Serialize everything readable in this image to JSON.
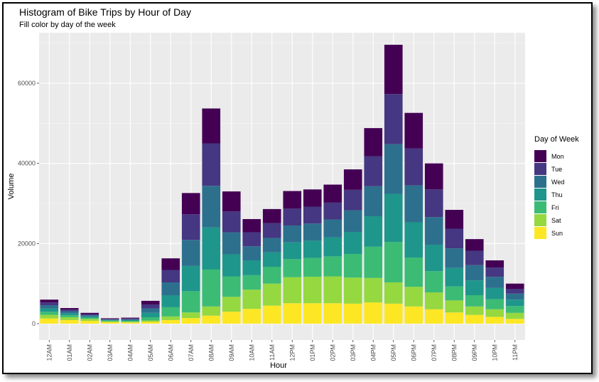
{
  "chart_data": {
    "type": "bar",
    "stacked": true,
    "title": "Histogram of Bike Trips by Hour of Day",
    "subtitle": "Fill color by day of the week",
    "xlabel": "Hour",
    "ylabel": "Volume",
    "ylim": [
      0,
      70000
    ],
    "yticks": [
      0,
      20000,
      40000,
      60000
    ],
    "grid": true,
    "legend_title": "Day of Week",
    "legend_position": "right",
    "categories": [
      "12AM",
      "01AM",
      "02AM",
      "03AM",
      "04AM",
      "05AM",
      "06AM",
      "07AM",
      "08AM",
      "09AM",
      "10AM",
      "11AM",
      "12PM",
      "01PM",
      "02PM",
      "03PM",
      "04PM",
      "05PM",
      "06PM",
      "07PM",
      "08PM",
      "09PM",
      "10PM",
      "11PM"
    ],
    "series": [
      {
        "name": "Sun",
        "color": "#fde725",
        "values": [
          1300,
          900,
          700,
          350,
          300,
          450,
          900,
          1400,
          2000,
          3000,
          3700,
          4500,
          5100,
          5100,
          5100,
          5000,
          5300,
          5000,
          4300,
          3600,
          2800,
          2200,
          1700,
          1200
        ]
      },
      {
        "name": "Sat",
        "color": "#95d840",
        "values": [
          900,
          700,
          500,
          250,
          200,
          350,
          900,
          1400,
          2300,
          3700,
          4800,
          5500,
          6500,
          6600,
          6700,
          6500,
          6100,
          5300,
          4900,
          4200,
          3000,
          2100,
          1900,
          1500
        ]
      },
      {
        "name": "Fri",
        "color": "#3cbb75",
        "values": [
          800,
          500,
          300,
          150,
          200,
          800,
          2300,
          5300,
          9200,
          5100,
          3600,
          4200,
          4500,
          4700,
          5000,
          5900,
          7800,
          10100,
          7300,
          5300,
          3500,
          2800,
          2500,
          1700
        ]
      },
      {
        "name": "Thu",
        "color": "#1f968b",
        "values": [
          800,
          500,
          300,
          150,
          200,
          1100,
          3000,
          6300,
          10500,
          5500,
          3700,
          3600,
          4200,
          4300,
          4700,
          5500,
          7600,
          12000,
          8800,
          6600,
          4600,
          3700,
          2800,
          1600
        ]
      },
      {
        "name": "Wed",
        "color": "#2d708e",
        "values": [
          800,
          500,
          300,
          150,
          200,
          1100,
          3200,
          6500,
          10400,
          5500,
          3500,
          3600,
          4200,
          4300,
          4500,
          5400,
          7500,
          12400,
          9200,
          6900,
          4900,
          3800,
          2800,
          1500
        ]
      },
      {
        "name": "Tue",
        "color": "#453781",
        "values": [
          700,
          400,
          300,
          150,
          200,
          1000,
          3100,
          6400,
          10600,
          5200,
          3500,
          3700,
          4200,
          4200,
          4200,
          5100,
          7500,
          12500,
          9200,
          6900,
          4900,
          3600,
          2300,
          1200
        ]
      },
      {
        "name": "Mon",
        "color": "#440154",
        "values": [
          700,
          400,
          300,
          150,
          200,
          900,
          2900,
          5300,
          8700,
          5000,
          3300,
          3500,
          4400,
          4300,
          4500,
          5100,
          7000,
          12300,
          8900,
          6500,
          4700,
          2900,
          1800,
          1300
        ]
      }
    ]
  }
}
